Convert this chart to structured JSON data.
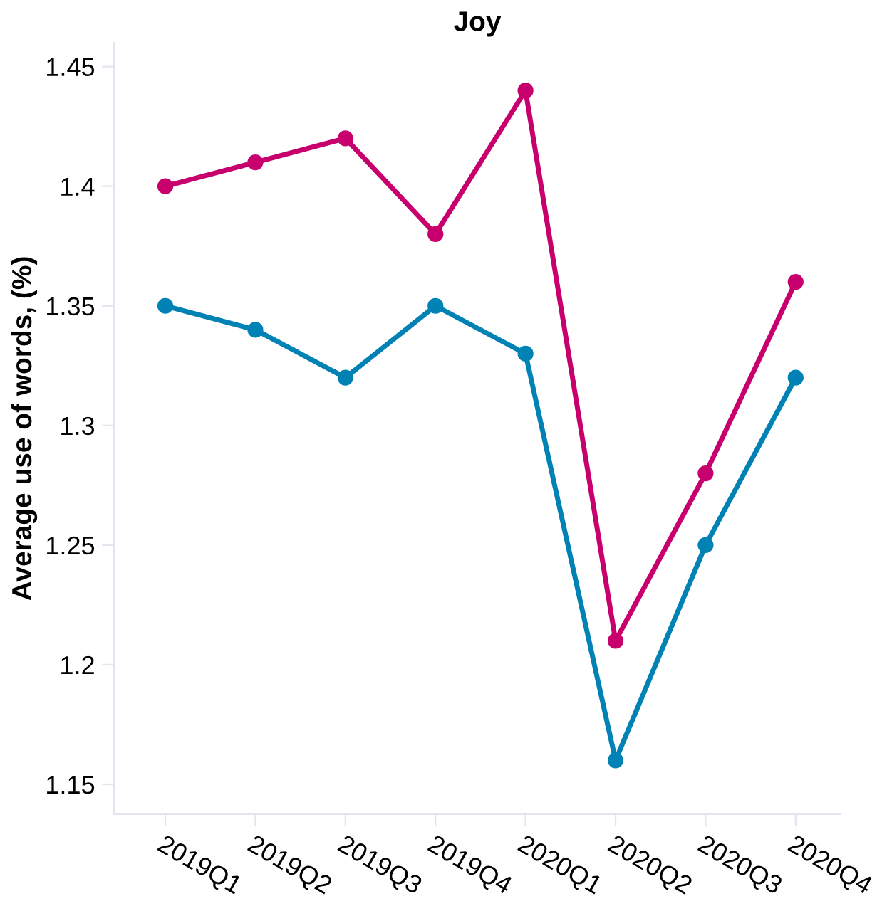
{
  "chart_data": {
    "type": "line",
    "title": "Joy",
    "ylabel": "Average use of words, (%)",
    "categories": [
      "2019Q1",
      "2019Q2",
      "2019Q3",
      "2019Q4",
      "2020Q1",
      "2020Q2",
      "2020Q3",
      "2020Q4"
    ],
    "series": [
      {
        "color": "#c8006e",
        "values": [
          1.4,
          1.41,
          1.42,
          1.38,
          1.44,
          1.21,
          1.28,
          1.36
        ]
      },
      {
        "color": "#0082b4",
        "values": [
          1.35,
          1.34,
          1.32,
          1.35,
          1.33,
          1.16,
          1.25,
          1.32
        ]
      }
    ],
    "ylim": [
      1.1375,
      1.46
    ],
    "yticks": [
      1.15,
      1.2,
      1.25,
      1.3,
      1.35,
      1.4,
      1.45
    ],
    "marker": "circle",
    "line_style": "solid",
    "grid": false,
    "legend": false
  }
}
